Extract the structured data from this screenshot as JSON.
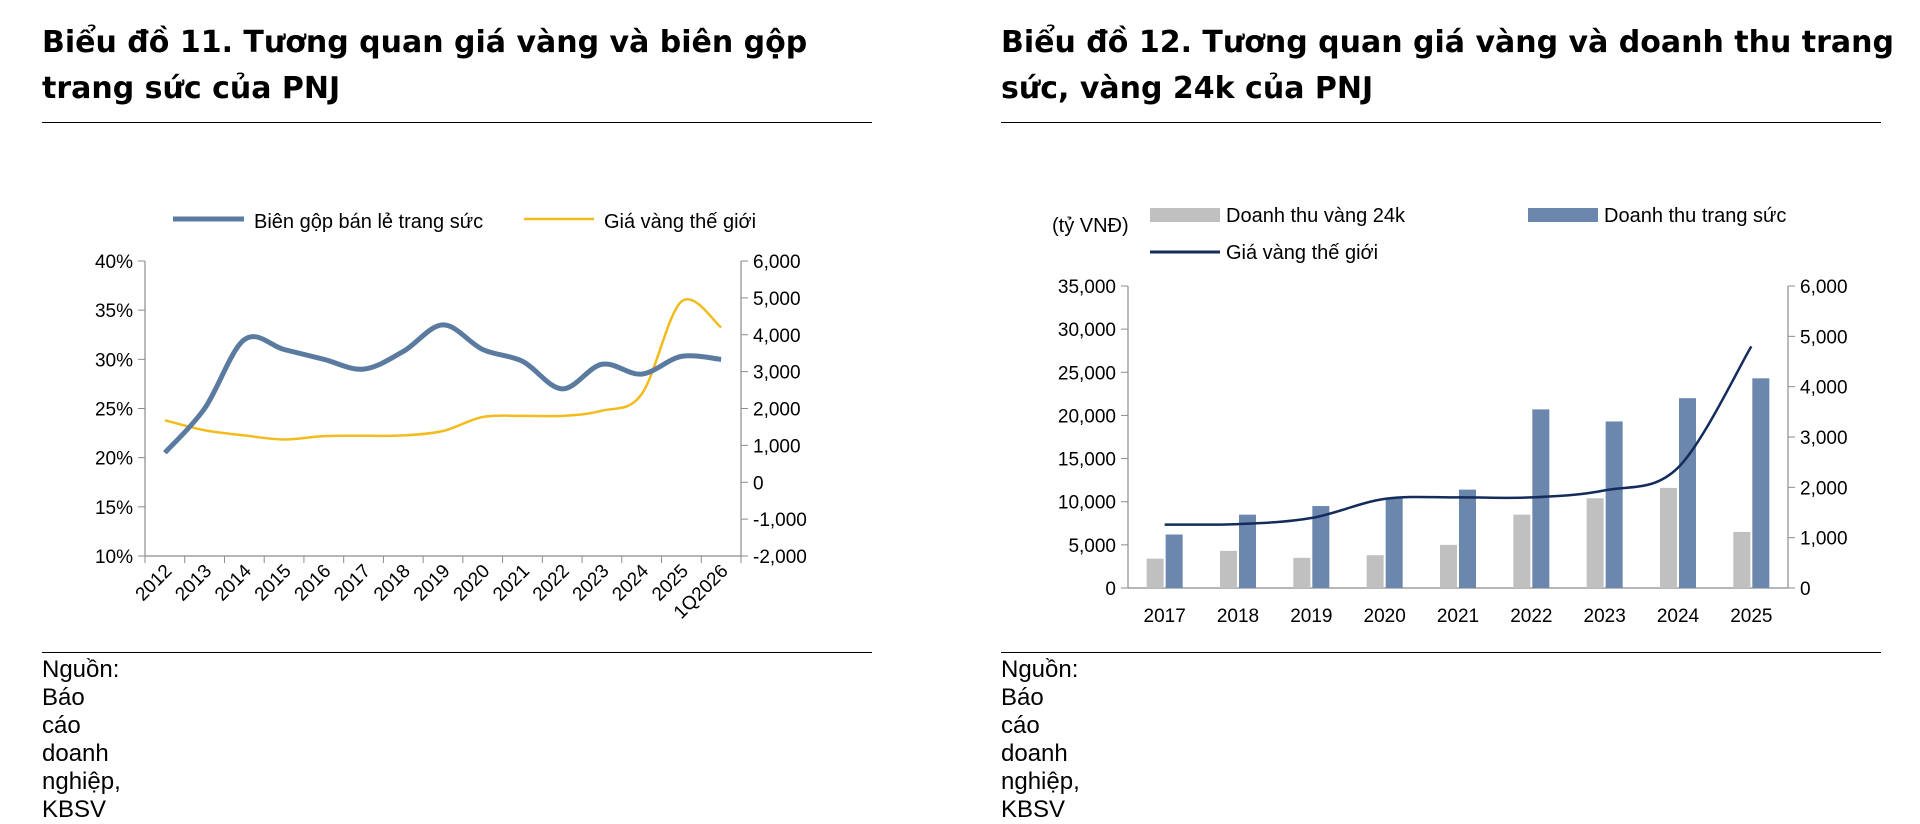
{
  "left_panel": {
    "title": "Biểu đồ 11. Tương quan giá vàng và biên gộp trang sức của PNJ",
    "source": "Nguồn: Báo cáo doanh nghiệp, KBSV"
  },
  "right_panel": {
    "title": "Biểu đồ 12. Tương quan giá vàng và doanh thu trang sức, vàng 24k của PNJ",
    "source": "Nguồn: Báo cáo doanh nghiệp, KBSV"
  },
  "chart_data": [
    {
      "type": "line",
      "title": "",
      "categories": [
        "2012",
        "2013",
        "2014",
        "2015",
        "2016",
        "2017",
        "2018",
        "2019",
        "2020",
        "2021",
        "2022",
        "2023",
        "2024",
        "2025",
        "1Q2026"
      ],
      "series": [
        {
          "name": "Biên gộp bán lẻ trang sức",
          "axis": "left",
          "color": "#5b7a9f",
          "values": [
            20.5,
            25.0,
            32.0,
            31.0,
            30.0,
            29.0,
            30.8,
            33.5,
            31.0,
            29.8,
            27.0,
            29.5,
            28.5,
            30.3,
            30.0
          ]
        },
        {
          "name": "Giá vàng thế giới",
          "axis": "right",
          "color": "#f3bc1c",
          "values": [
            1680,
            1410,
            1270,
            1160,
            1250,
            1260,
            1270,
            1390,
            1770,
            1800,
            1800,
            1940,
            2390,
            4900,
            4200
          ]
        }
      ],
      "yleft": {
        "ticks": [
          "40%",
          "35%",
          "30%",
          "25%",
          "20%",
          "15%",
          "10%"
        ],
        "range": [
          10,
          40
        ]
      },
      "yright": {
        "ticks": [
          "6,000",
          "5,000",
          "4,000",
          "3,000",
          "2,000",
          "1,000",
          "0",
          "-1,000",
          "-2,000"
        ],
        "range": [
          -2000,
          6000
        ]
      },
      "legend": "top",
      "grid": false
    },
    {
      "type": "bar",
      "title": "",
      "unit_label": "(tỷ VNĐ)",
      "categories": [
        "2017",
        "2018",
        "2019",
        "2020",
        "2021",
        "2022",
        "2023",
        "2024",
        "2025"
      ],
      "series": [
        {
          "name": "Doanh thu vàng 24k",
          "type": "bar",
          "axis": "left",
          "color": "#c0c0c0",
          "values": [
            3400,
            4300,
            3500,
            3800,
            5000,
            8500,
            10400,
            11600,
            6500
          ]
        },
        {
          "name": "Doanh thu trang sức",
          "type": "bar",
          "axis": "left",
          "color": "#6b87ae",
          "values": [
            6200,
            8500,
            9500,
            10400,
            11400,
            20700,
            19300,
            22000,
            24300
          ]
        },
        {
          "name": "Giá vàng thế giới",
          "type": "line",
          "axis": "right",
          "color": "#142c5c",
          "values": [
            1260,
            1270,
            1390,
            1770,
            1800,
            1800,
            1940,
            2390,
            4800
          ]
        }
      ],
      "yleft": {
        "ticks": [
          "35,000",
          "30,000",
          "25,000",
          "20,000",
          "15,000",
          "10,000",
          "5,000",
          "0"
        ],
        "range": [
          0,
          35000
        ]
      },
      "yright": {
        "ticks": [
          "6,000",
          "5,000",
          "4,000",
          "3,000",
          "2,000",
          "1,000",
          "0"
        ],
        "range": [
          0,
          6000
        ]
      },
      "legend": "top",
      "grid": false
    }
  ]
}
